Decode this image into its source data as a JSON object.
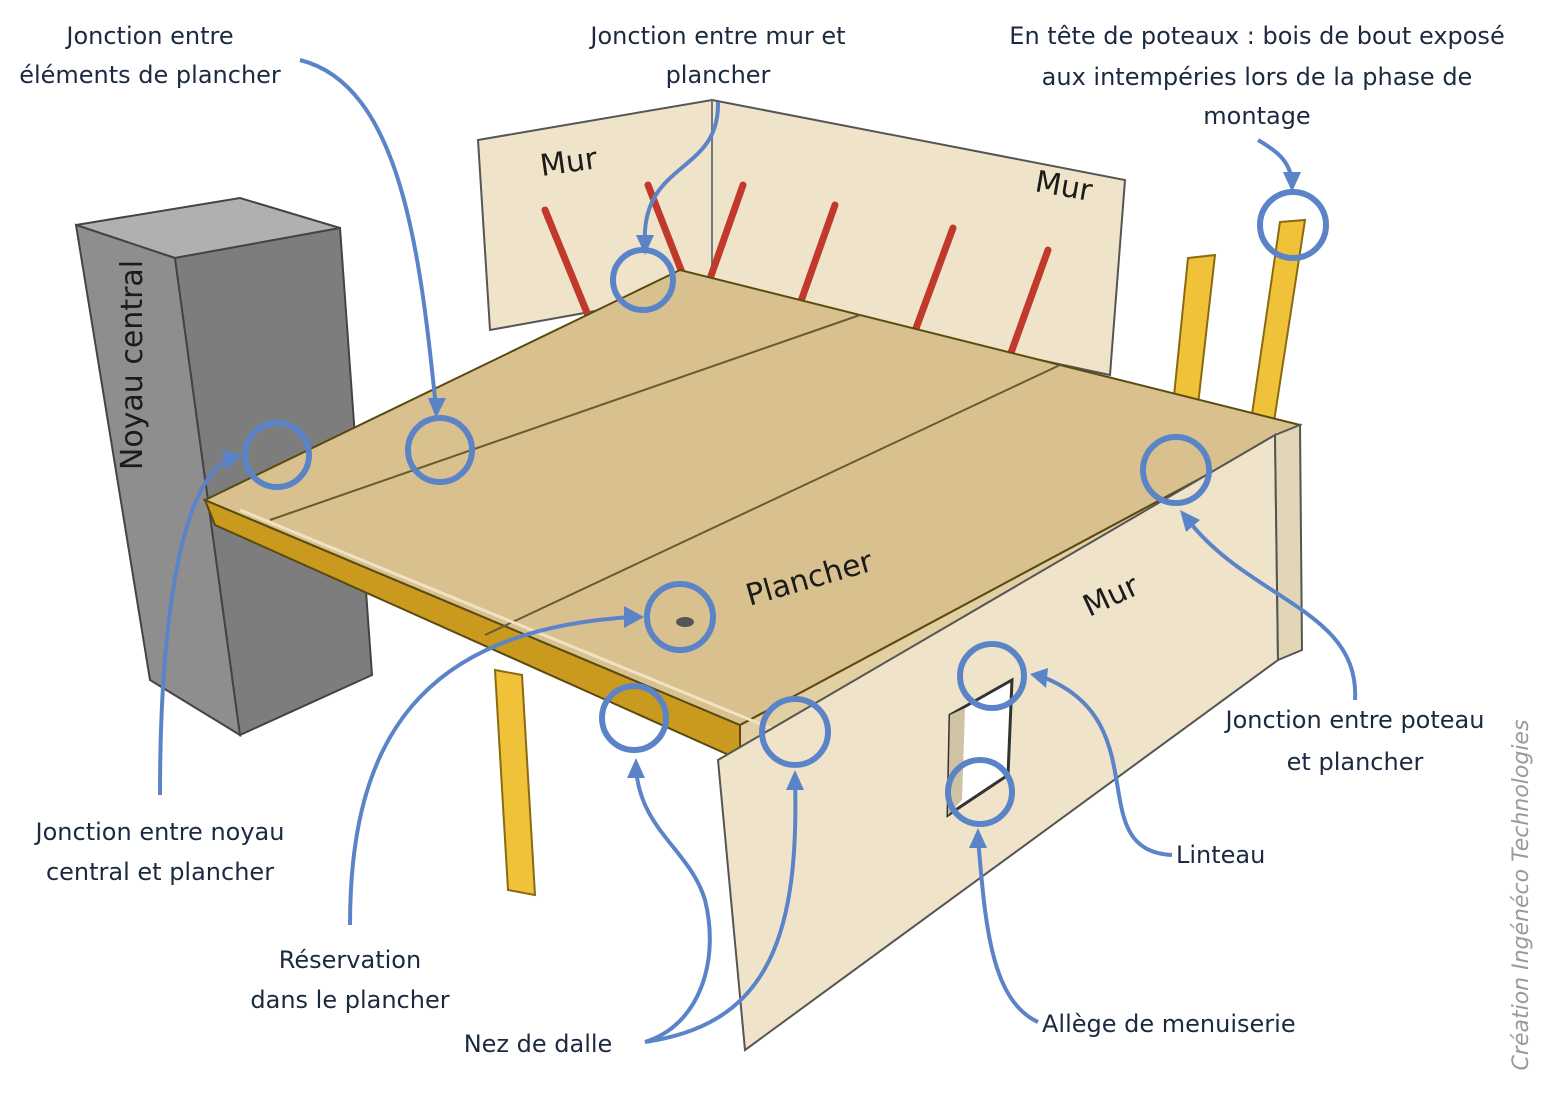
{
  "labels": {
    "jonction_elements_1": "Jonction entre",
    "jonction_elements_2": "éléments de plancher",
    "jonction_mur_1": "Jonction entre mur et",
    "jonction_mur_2": "plancher",
    "tete_poteaux_1": "En tête de poteaux : bois de bout exposé",
    "tete_poteaux_2": "aux intempéries lors de la phase de",
    "tete_poteaux_3": "montage",
    "noyau_central": "Noyau central",
    "mur_back_left": "Mur",
    "mur_back_right": "Mur",
    "mur_front": "Mur",
    "plancher": "Plancher",
    "jonction_poteau_1": "Jonction entre poteau",
    "jonction_poteau_2": "et plancher",
    "linteau": "Linteau",
    "jonction_noyau_1": "Jonction entre noyau",
    "jonction_noyau_2": "central et plancher",
    "reservation_1": "Réservation",
    "reservation_2": "dans le plancher",
    "nez_de_dalle": "Nez de dalle",
    "allege": "Allège de menuiserie",
    "credit": "Création Ingénéco Technologies"
  },
  "colors": {
    "accent": "#5b84c8",
    "floor": "#d9c18f",
    "wall": "#efe4c9",
    "core": "#8e8e8e",
    "post": "#f0c23a",
    "props": "#c0392b"
  }
}
